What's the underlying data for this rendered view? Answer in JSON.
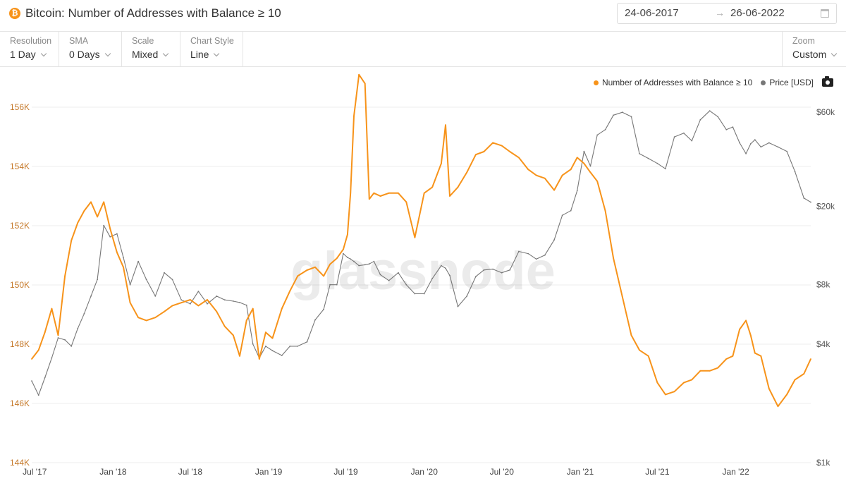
{
  "header": {
    "title": "Bitcoin: Number of Addresses with Balance ≥ 10",
    "coin_glyph": "₿",
    "date_from": "24-06-2017",
    "date_arrow": "→",
    "date_to": "26-06-2022"
  },
  "toolbar": {
    "resolution": {
      "label": "Resolution",
      "value": "1 Day"
    },
    "sma": {
      "label": "SMA",
      "value": "0 Days"
    },
    "scale": {
      "label": "Scale",
      "value": "Mixed"
    },
    "chart_style": {
      "label": "Chart Style",
      "value": "Line"
    },
    "zoom": {
      "label": "Zoom",
      "value": "Custom"
    }
  },
  "legend": {
    "series1": "Number of Addresses with Balance ≥ 10",
    "series2": "Price [USD]"
  },
  "watermark": "glassnode",
  "colors": {
    "addresses": "#f7931a",
    "price": "#777777",
    "grid": "#ececec"
  },
  "chart_data": {
    "type": "line",
    "title": "Bitcoin: Number of Addresses with Balance ≥ 10",
    "x_ticks": [
      "Jul '17",
      "Jan '18",
      "Jul '18",
      "Jan '19",
      "Jul '19",
      "Jan '20",
      "Jul '20",
      "Jan '21",
      "Jul '21",
      "Jan '22"
    ],
    "y_left": {
      "ticks": [
        "144K",
        "146K",
        "148K",
        "150K",
        "152K",
        "154K",
        "156K"
      ],
      "range": [
        144000,
        157000
      ]
    },
    "y_right": {
      "scale": "log",
      "ticks": [
        "$1k",
        "$4k",
        "$8k",
        "$20k",
        "$60k"
      ],
      "range": [
        1000,
        90000
      ]
    },
    "grid": true,
    "legend_position": "top-right",
    "series": [
      {
        "name": "Number of Addresses with Balance ≥ 10",
        "axis": "left",
        "x": [
          "2017-06-24",
          "2017-07-10",
          "2017-07-25",
          "2017-08-10",
          "2017-08-25",
          "2017-09-10",
          "2017-09-25",
          "2017-10-10",
          "2017-10-25",
          "2017-11-10",
          "2017-11-25",
          "2017-12-10",
          "2017-12-25",
          "2018-01-10",
          "2018-01-25",
          "2018-02-10",
          "2018-03-01",
          "2018-03-20",
          "2018-04-10",
          "2018-05-01",
          "2018-05-20",
          "2018-06-10",
          "2018-07-01",
          "2018-07-20",
          "2018-08-10",
          "2018-09-01",
          "2018-09-20",
          "2018-10-10",
          "2018-10-25",
          "2018-11-10",
          "2018-11-25",
          "2018-12-10",
          "2018-12-25",
          "2019-01-10",
          "2019-02-01",
          "2019-02-20",
          "2019-03-10",
          "2019-04-01",
          "2019-04-20",
          "2019-05-10",
          "2019-05-25",
          "2019-06-10",
          "2019-06-25",
          "2019-07-05",
          "2019-07-12",
          "2019-07-20",
          "2019-08-01",
          "2019-08-15",
          "2019-08-25",
          "2019-09-05",
          "2019-09-20",
          "2019-10-10",
          "2019-11-01",
          "2019-11-20",
          "2019-12-10",
          "2020-01-01",
          "2020-01-20",
          "2020-02-10",
          "2020-02-20",
          "2020-03-01",
          "2020-03-20",
          "2020-04-10",
          "2020-05-01",
          "2020-05-20",
          "2020-06-10",
          "2020-07-01",
          "2020-07-20",
          "2020-08-10",
          "2020-09-01",
          "2020-09-20",
          "2020-10-10",
          "2020-11-01",
          "2020-11-20",
          "2020-12-10",
          "2020-12-25",
          "2021-01-10",
          "2021-01-25",
          "2021-02-10",
          "2021-03-01",
          "2021-03-20",
          "2021-04-10",
          "2021-05-01",
          "2021-05-20",
          "2021-06-10",
          "2021-07-01",
          "2021-07-20",
          "2021-08-10",
          "2021-09-01",
          "2021-09-20",
          "2021-10-10",
          "2021-11-01",
          "2021-11-20",
          "2021-12-10",
          "2021-12-25",
          "2022-01-10",
          "2022-01-25",
          "2022-02-05",
          "2022-02-15",
          "2022-03-01",
          "2022-03-20",
          "2022-04-10",
          "2022-05-01",
          "2022-05-20",
          "2022-06-10",
          "2022-06-26"
        ],
        "y": [
          147500,
          147800,
          148400,
          149200,
          148300,
          150300,
          151500,
          152100,
          152500,
          152800,
          152300,
          152800,
          151900,
          151100,
          150600,
          149400,
          148900,
          148800,
          148900,
          149100,
          149300,
          149400,
          149500,
          149300,
          149500,
          149100,
          148600,
          148300,
          147600,
          148800,
          149200,
          147500,
          148400,
          148200,
          149200,
          149800,
          150300,
          150500,
          150600,
          150300,
          150700,
          150900,
          151200,
          151700,
          153100,
          155700,
          157100,
          156800,
          152900,
          153100,
          153000,
          153100,
          153100,
          152800,
          151600,
          153100,
          153300,
          154100,
          155400,
          153000,
          153300,
          153800,
          154400,
          154500,
          154800,
          154700,
          154500,
          154300,
          153900,
          153700,
          153600,
          153200,
          153700,
          153900,
          154300,
          154100,
          153800,
          153500,
          152500,
          150900,
          149600,
          148300,
          147800,
          147600,
          146700,
          146300,
          146400,
          146700,
          146800,
          147100,
          147100,
          147200,
          147500,
          147600,
          148500,
          148800,
          148300,
          147700,
          147600,
          146500,
          145900,
          146300,
          146800,
          147000,
          147500
        ]
      },
      {
        "name": "Price [USD]",
        "axis": "right",
        "x": [
          "2017-06-24",
          "2017-07-10",
          "2017-07-25",
          "2017-08-10",
          "2017-08-25",
          "2017-09-10",
          "2017-09-25",
          "2017-10-10",
          "2017-10-25",
          "2017-11-10",
          "2017-11-25",
          "2017-12-10",
          "2017-12-25",
          "2018-01-10",
          "2018-01-25",
          "2018-02-10",
          "2018-03-01",
          "2018-03-20",
          "2018-04-10",
          "2018-05-01",
          "2018-05-20",
          "2018-06-10",
          "2018-07-01",
          "2018-07-20",
          "2018-08-10",
          "2018-09-01",
          "2018-09-20",
          "2018-10-10",
          "2018-10-25",
          "2018-11-10",
          "2018-11-25",
          "2018-12-10",
          "2018-12-25",
          "2019-01-10",
          "2019-02-01",
          "2019-02-20",
          "2019-03-10",
          "2019-04-01",
          "2019-04-20",
          "2019-05-10",
          "2019-05-25",
          "2019-06-10",
          "2019-06-25",
          "2019-07-05",
          "2019-07-12",
          "2019-07-20",
          "2019-08-01",
          "2019-08-15",
          "2019-08-25",
          "2019-09-05",
          "2019-09-20",
          "2019-10-10",
          "2019-11-01",
          "2019-11-20",
          "2019-12-10",
          "2020-01-01",
          "2020-01-20",
          "2020-02-10",
          "2020-02-20",
          "2020-03-01",
          "2020-03-20",
          "2020-04-10",
          "2020-05-01",
          "2020-05-20",
          "2020-06-10",
          "2020-07-01",
          "2020-07-20",
          "2020-08-10",
          "2020-09-01",
          "2020-09-20",
          "2020-10-10",
          "2020-11-01",
          "2020-11-20",
          "2020-12-10",
          "2020-12-25",
          "2021-01-10",
          "2021-01-25",
          "2021-02-10",
          "2021-03-01",
          "2021-03-20",
          "2021-04-10",
          "2021-05-01",
          "2021-05-20",
          "2021-06-10",
          "2021-07-01",
          "2021-07-20",
          "2021-08-10",
          "2021-09-01",
          "2021-09-20",
          "2021-10-10",
          "2021-11-01",
          "2021-11-20",
          "2021-12-10",
          "2021-12-25",
          "2022-01-10",
          "2022-01-25",
          "2022-02-05",
          "2022-02-15",
          "2022-03-01",
          "2022-03-20",
          "2022-04-10",
          "2022-05-01",
          "2022-05-20",
          "2022-06-10",
          "2022-06-26"
        ],
        "y": [
          2600,
          2200,
          2700,
          3400,
          4300,
          4200,
          3900,
          4800,
          5700,
          7000,
          8500,
          16000,
          14000,
          14500,
          11000,
          8000,
          10500,
          8500,
          7000,
          9200,
          8500,
          6700,
          6400,
          7400,
          6400,
          7000,
          6700,
          6600,
          6500,
          6300,
          4000,
          3400,
          3900,
          3700,
          3500,
          3900,
          3900,
          4100,
          5300,
          6000,
          8000,
          8000,
          11500,
          11000,
          10800,
          10500,
          10000,
          10100,
          10200,
          10500,
          9000,
          8400,
          9200,
          8000,
          7200,
          7200,
          8600,
          10000,
          9700,
          8900,
          6200,
          7000,
          8800,
          9500,
          9600,
          9200,
          9500,
          11800,
          11500,
          10800,
          11300,
          13500,
          18000,
          19000,
          24000,
          38000,
          32000,
          46000,
          49000,
          58000,
          60000,
          57000,
          37000,
          35000,
          33000,
          31000,
          45000,
          47000,
          43000,
          55000,
          61000,
          57000,
          49000,
          50500,
          42000,
          37000,
          41500,
          43500,
          40000,
          42000,
          40000,
          38000,
          30000,
          22000,
          21000
        ]
      }
    ]
  }
}
